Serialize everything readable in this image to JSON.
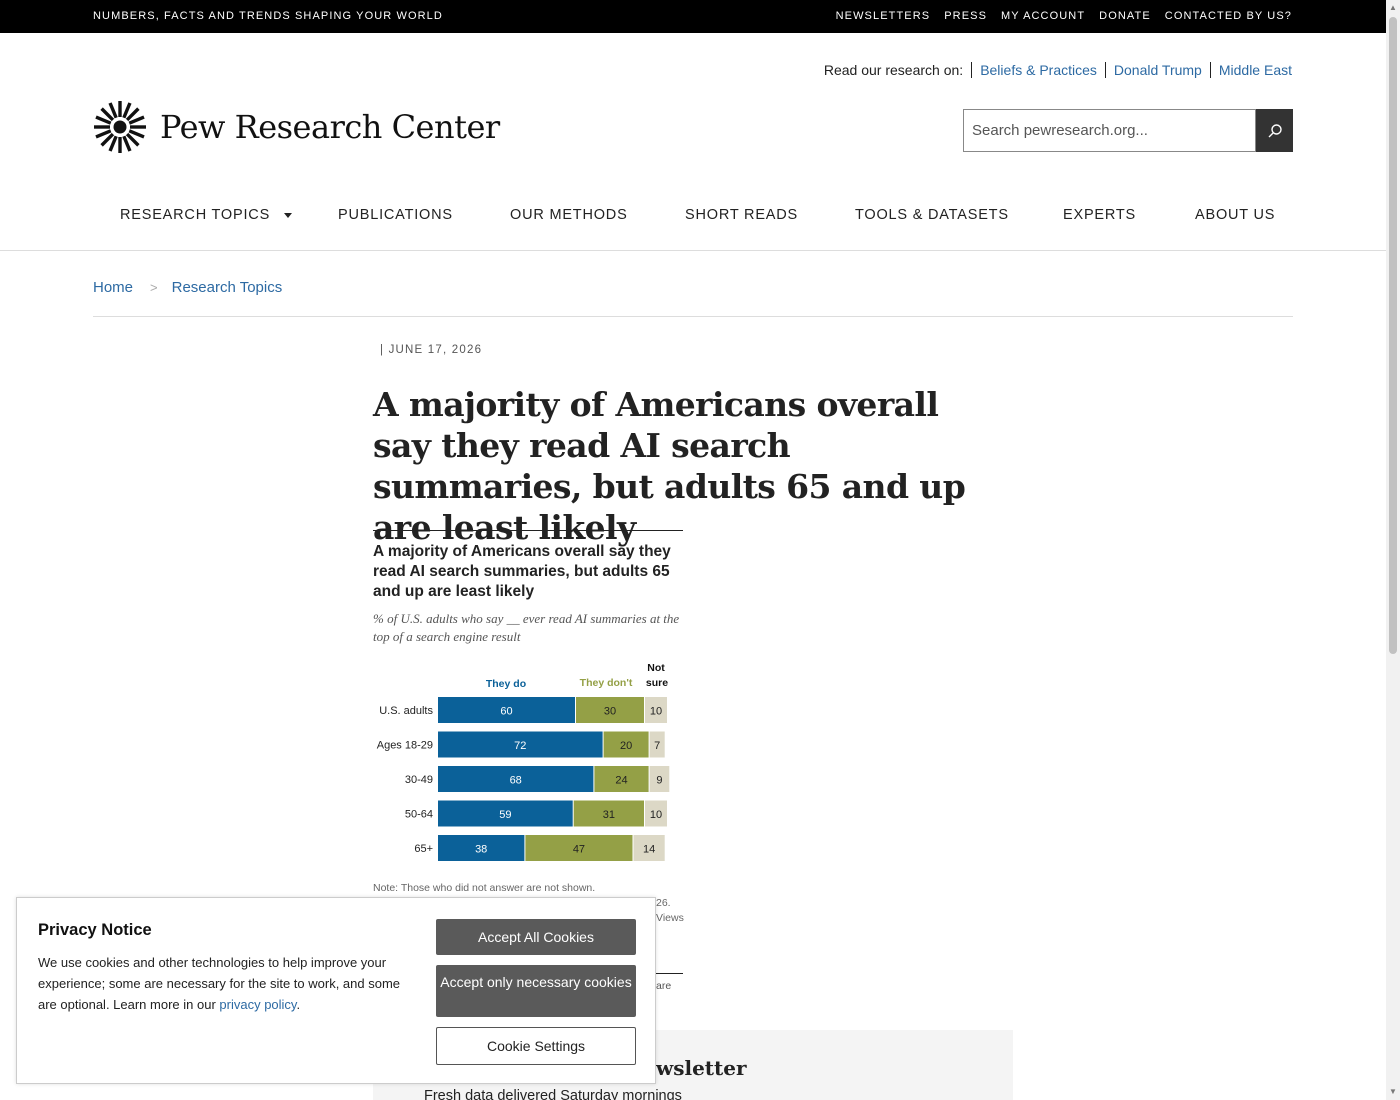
{
  "topbar": {
    "tagline": "NUMBERS, FACTS AND TRENDS SHAPING YOUR WORLD",
    "links": [
      "NEWSLETTERS",
      "PRESS",
      "MY ACCOUNT",
      "DONATE",
      "CONTACTED BY US?"
    ]
  },
  "readbar": {
    "label": "Read our research on:",
    "topics": [
      "Beliefs & Practices",
      "Donald Trump",
      "Middle East"
    ]
  },
  "logo": {
    "name": "Pew Research Center"
  },
  "search": {
    "placeholder": "Search pewresearch.org...",
    "icon": "search-icon"
  },
  "nav": {
    "items": [
      "RESEARCH TOPICS",
      "PUBLICATIONS",
      "OUR METHODS",
      "SHORT READS",
      "TOOLS & DATASETS",
      "EXPERTS",
      "ABOUT US"
    ]
  },
  "breadcrumb": {
    "items": [
      "Home",
      "Research Topics"
    ],
    "separator": ">"
  },
  "article": {
    "date": "|  JUNE 17, 2026",
    "headline": "A majority of Americans overall say they read AI search summaries, but adults 65 and up are least likely"
  },
  "chart_data": {
    "type": "bar",
    "stacked": true,
    "orientation": "horizontal",
    "title": "A majority of Americans overall say they read AI search summaries, but adults 65 and up are least likely",
    "subtitle": "% of U.S. adults who say __ ever read AI summaries at the top of a search engine result",
    "categories": [
      "U.S. adults",
      "Ages 18-29",
      "30-49",
      "50-64",
      "65+"
    ],
    "series": [
      {
        "name": "They do",
        "color": "#0b6199",
        "values": [
          60,
          72,
          68,
          59,
          38
        ]
      },
      {
        "name": "They don't",
        "color": "#94a046",
        "values": [
          30,
          20,
          24,
          31,
          47
        ]
      },
      {
        "name": "Not sure",
        "color": "#dcd8c6",
        "values": [
          10,
          7,
          9,
          10,
          14
        ]
      }
    ],
    "legend_header_labels": {
      "they_do": "They do",
      "they_dont": "They don't",
      "not_sure_1": "Not",
      "not_sure_2": "sure"
    },
    "note": "Note: Those who did not answer are not shown.",
    "note_fragments": [
      "26.",
      "Views",
      "are"
    ]
  },
  "newsletter": {
    "title_visible": "wsletter",
    "subtitle": "Fresh data delivered Saturday mornings"
  },
  "privacy": {
    "title": "Privacy Notice",
    "body": "We use cookies and other technologies to help improve your experience; some are necessary for the site to work, and some are optional. Learn more in our",
    "link": "privacy policy",
    "period": ".",
    "accept_all": "Accept All Cookies",
    "accept_necessary": "Accept only necessary cookies",
    "settings": "Cookie Settings"
  }
}
